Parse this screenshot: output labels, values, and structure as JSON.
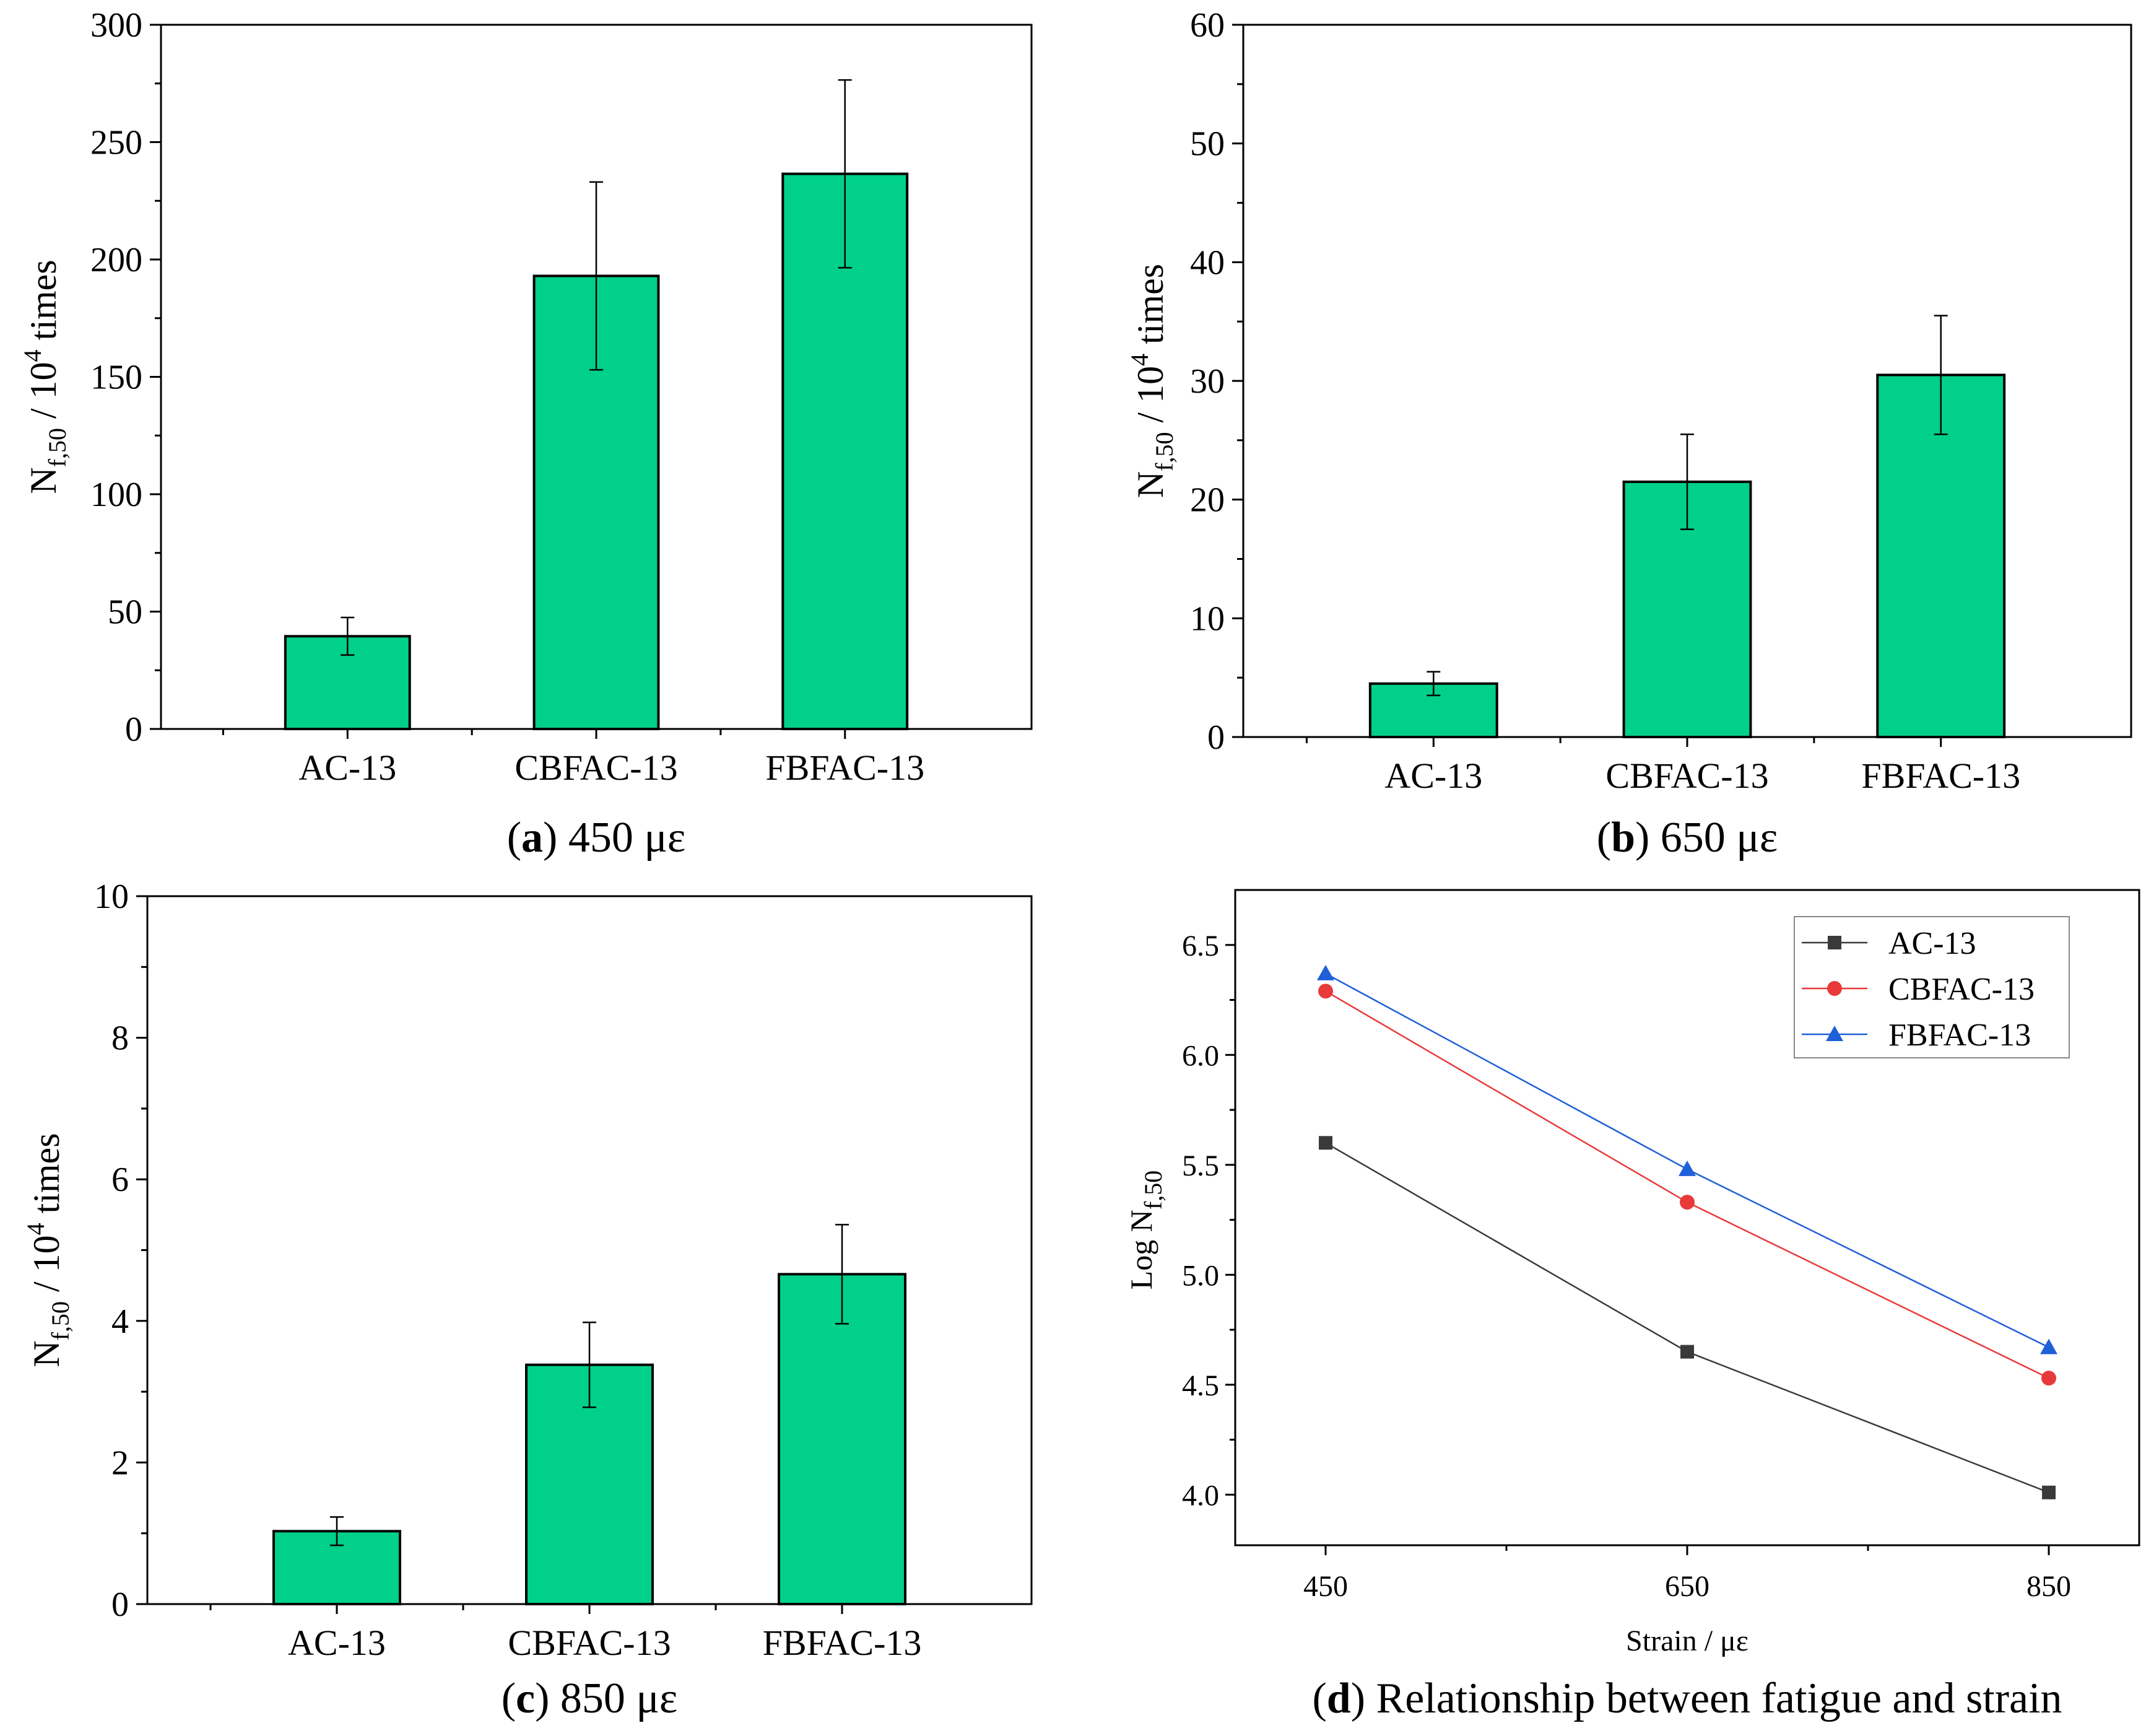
{
  "colors": {
    "bar_fill": "#00D08A",
    "ac13": "#3a3a3a",
    "cbfac13": "#e83a3a",
    "fbfac13": "#1f5fd8"
  },
  "chart_data": [
    {
      "type": "bar",
      "id": "a",
      "caption_letter": "a",
      "caption_rest": " 450 με",
      "categories": [
        "AC-13",
        "CBFAC-13",
        "FBFAC-13"
      ],
      "values": [
        39.5,
        193,
        236.5
      ],
      "errors": [
        8,
        40,
        40
      ],
      "ylim": [
        0,
        300
      ],
      "yticks": [
        0,
        50,
        100,
        150,
        200,
        250,
        300
      ],
      "ylabel_main": "N",
      "ylabel_sub": "f,50",
      "ylabel_mid": " / 10",
      "ylabel_sup": "4",
      "ylabel_end": " times"
    },
    {
      "type": "bar",
      "id": "b",
      "caption_letter": "b",
      "caption_rest": " 650 με",
      "categories": [
        "AC-13",
        "CBFAC-13",
        "FBFAC-13"
      ],
      "values": [
        4.5,
        21.5,
        30.5
      ],
      "errors": [
        1,
        4,
        5
      ],
      "ylim": [
        0,
        60
      ],
      "yticks": [
        0,
        10,
        20,
        30,
        40,
        50,
        60
      ],
      "ylabel_main": "N",
      "ylabel_sub": "f,50",
      "ylabel_mid": " / 10",
      "ylabel_sup": "4",
      "ylabel_end": " times"
    },
    {
      "type": "bar",
      "id": "c",
      "caption_letter": "c",
      "caption_rest": " 850 με",
      "categories": [
        "AC-13",
        "CBFAC-13",
        "FBFAC-13"
      ],
      "values": [
        1.03,
        3.38,
        4.66
      ],
      "errors": [
        0.2,
        0.6,
        0.7
      ],
      "ylim": [
        0,
        10
      ],
      "yticks": [
        0,
        2,
        4,
        6,
        8,
        10
      ],
      "ylabel_main": "N",
      "ylabel_sub": "f,50",
      "ylabel_mid": " / 10",
      "ylabel_sup": "4",
      "ylabel_end": " times"
    },
    {
      "type": "line",
      "id": "d",
      "caption_letter": "d",
      "caption_rest": " Relationship between fatigue and strain",
      "x": [
        450,
        650,
        850
      ],
      "xticks": [
        "450",
        "650",
        "850"
      ],
      "xlim": [
        400,
        900
      ],
      "ylim": [
        3.77,
        6.75
      ],
      "yticks": [
        "4.0",
        "4.5",
        "5.0",
        "5.5",
        "6.0",
        "6.5"
      ],
      "xlabel": "Strain / με",
      "ylabel_main": "Log N",
      "ylabel_sub": "f,50",
      "legend_position": "top-right",
      "series": [
        {
          "name": "AC-13",
          "marker": "square",
          "values": [
            5.6,
            4.65,
            4.01
          ]
        },
        {
          "name": "CBFAC-13",
          "marker": "circle",
          "values": [
            6.29,
            5.33,
            4.53
          ]
        },
        {
          "name": "FBFAC-13",
          "marker": "triangle",
          "values": [
            6.37,
            5.48,
            4.67
          ]
        }
      ]
    }
  ]
}
